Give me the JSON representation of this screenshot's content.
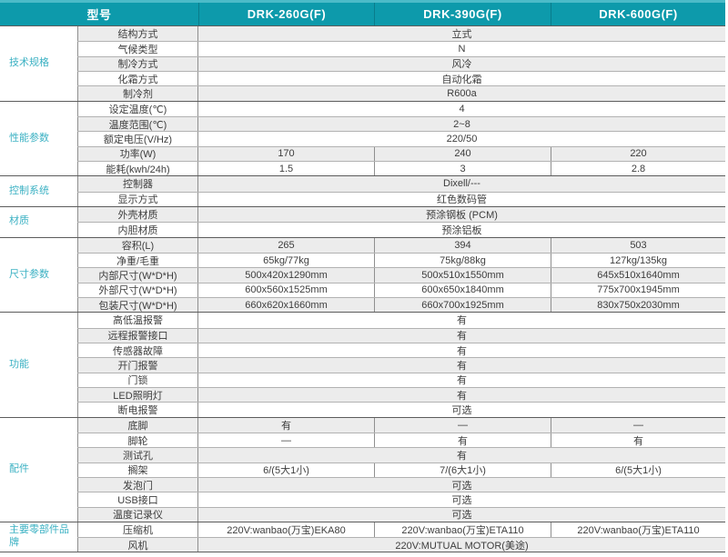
{
  "table": {
    "header": {
      "model_label": "型号",
      "models": [
        "DRK-260G(F)",
        "DRK-390G(F)",
        "DRK-600G(F)"
      ]
    },
    "sections": [
      {
        "name": "技术规格",
        "rows": [
          {
            "label": "结构方式",
            "span": "立式"
          },
          {
            "label": "气候类型",
            "span": "N"
          },
          {
            "label": "制冷方式",
            "span": "风冷"
          },
          {
            "label": "化霜方式",
            "span": "自动化霜"
          },
          {
            "label": "制冷剂",
            "span": "R600a"
          }
        ]
      },
      {
        "name": "性能参数",
        "rows": [
          {
            "label": "设定温度(℃)",
            "span": "4"
          },
          {
            "label": "温度范围(℃)",
            "span": "2~8"
          },
          {
            "label": "额定电压(V/Hz)",
            "span": "220/50"
          },
          {
            "label": "功率(W)",
            "values": [
              "170",
              "240",
              "220"
            ]
          },
          {
            "label": "能耗(kwh/24h)",
            "values": [
              "1.5",
              "3",
              "2.8"
            ]
          }
        ]
      },
      {
        "name": "控制系统",
        "rows": [
          {
            "label": "控制器",
            "span": "Dixell/---"
          },
          {
            "label": "显示方式",
            "span": "红色数码管"
          }
        ]
      },
      {
        "name": "材质",
        "rows": [
          {
            "label": "外壳材质",
            "span": "预涂钢板 (PCM)"
          },
          {
            "label": "内胆材质",
            "span": "预涂铝板"
          }
        ]
      },
      {
        "name": "尺寸参数",
        "rows": [
          {
            "label": "容积(L)",
            "values": [
              "265",
              "394",
              "503"
            ]
          },
          {
            "label": "净重/毛重",
            "values": [
              "65kg/77kg",
              "75kg/88kg",
              "127kg/135kg"
            ]
          },
          {
            "label": "内部尺寸(W*D*H)",
            "values": [
              "500x420x1290mm",
              "500x510x1550mm",
              "645x510x1640mm"
            ]
          },
          {
            "label": "外部尺寸(W*D*H)",
            "values": [
              "600x560x1525mm",
              "600x650x1840mm",
              "775x700x1945mm"
            ]
          },
          {
            "label": "包装尺寸(W*D*H)",
            "values": [
              "660x620x1660mm",
              "660x700x1925mm",
              "830x750x2030mm"
            ]
          }
        ]
      },
      {
        "name": "功能",
        "rows": [
          {
            "label": "高低温报警",
            "span": "有"
          },
          {
            "label": "远程报警接口",
            "span": "有"
          },
          {
            "label": "传感器故障",
            "span": "有"
          },
          {
            "label": "开门报警",
            "span": "有"
          },
          {
            "label": "门锁",
            "span": "有"
          },
          {
            "label": "LED照明灯",
            "span": "有"
          },
          {
            "label": "断电报警",
            "span": "可选"
          }
        ]
      },
      {
        "name": "配件",
        "rows": [
          {
            "label": "底脚",
            "values": [
              "有",
              "—",
              "—"
            ]
          },
          {
            "label": "脚轮",
            "values": [
              "—",
              "有",
              "有"
            ]
          },
          {
            "label": "测试孔",
            "span": "有"
          },
          {
            "label": "搁架",
            "values": [
              "6/(5大1小)",
              "7/(6大1小)",
              "6/(5大1小)"
            ]
          },
          {
            "label": "发泡门",
            "span": "可选"
          },
          {
            "label": "USB接口",
            "span": "可选"
          },
          {
            "label": "温度记录仪",
            "span": "可选"
          }
        ]
      },
      {
        "name": "主要零部件品牌",
        "rows": [
          {
            "label": "压缩机",
            "values": [
              "220V:wanbao(万宝)EKA80",
              "220V:wanbao(万宝)ETA110",
              "220V:wanbao(万宝)ETA110"
            ]
          },
          {
            "label": "风机",
            "span": "220V:MUTUAL MOTOR(美途)"
          }
        ]
      }
    ],
    "colors": {
      "header_bg": "#0d9aab",
      "header_top_strip": "#4cbbc8",
      "header_text": "#ffffff",
      "header_divider": "#0a7c8b",
      "category_text": "#3bb1c3",
      "row_stripe": "#ececec",
      "row_border": "#b2b2b2",
      "section_border": "#5c5c5c",
      "body_text": "#3d3d3d"
    }
  }
}
